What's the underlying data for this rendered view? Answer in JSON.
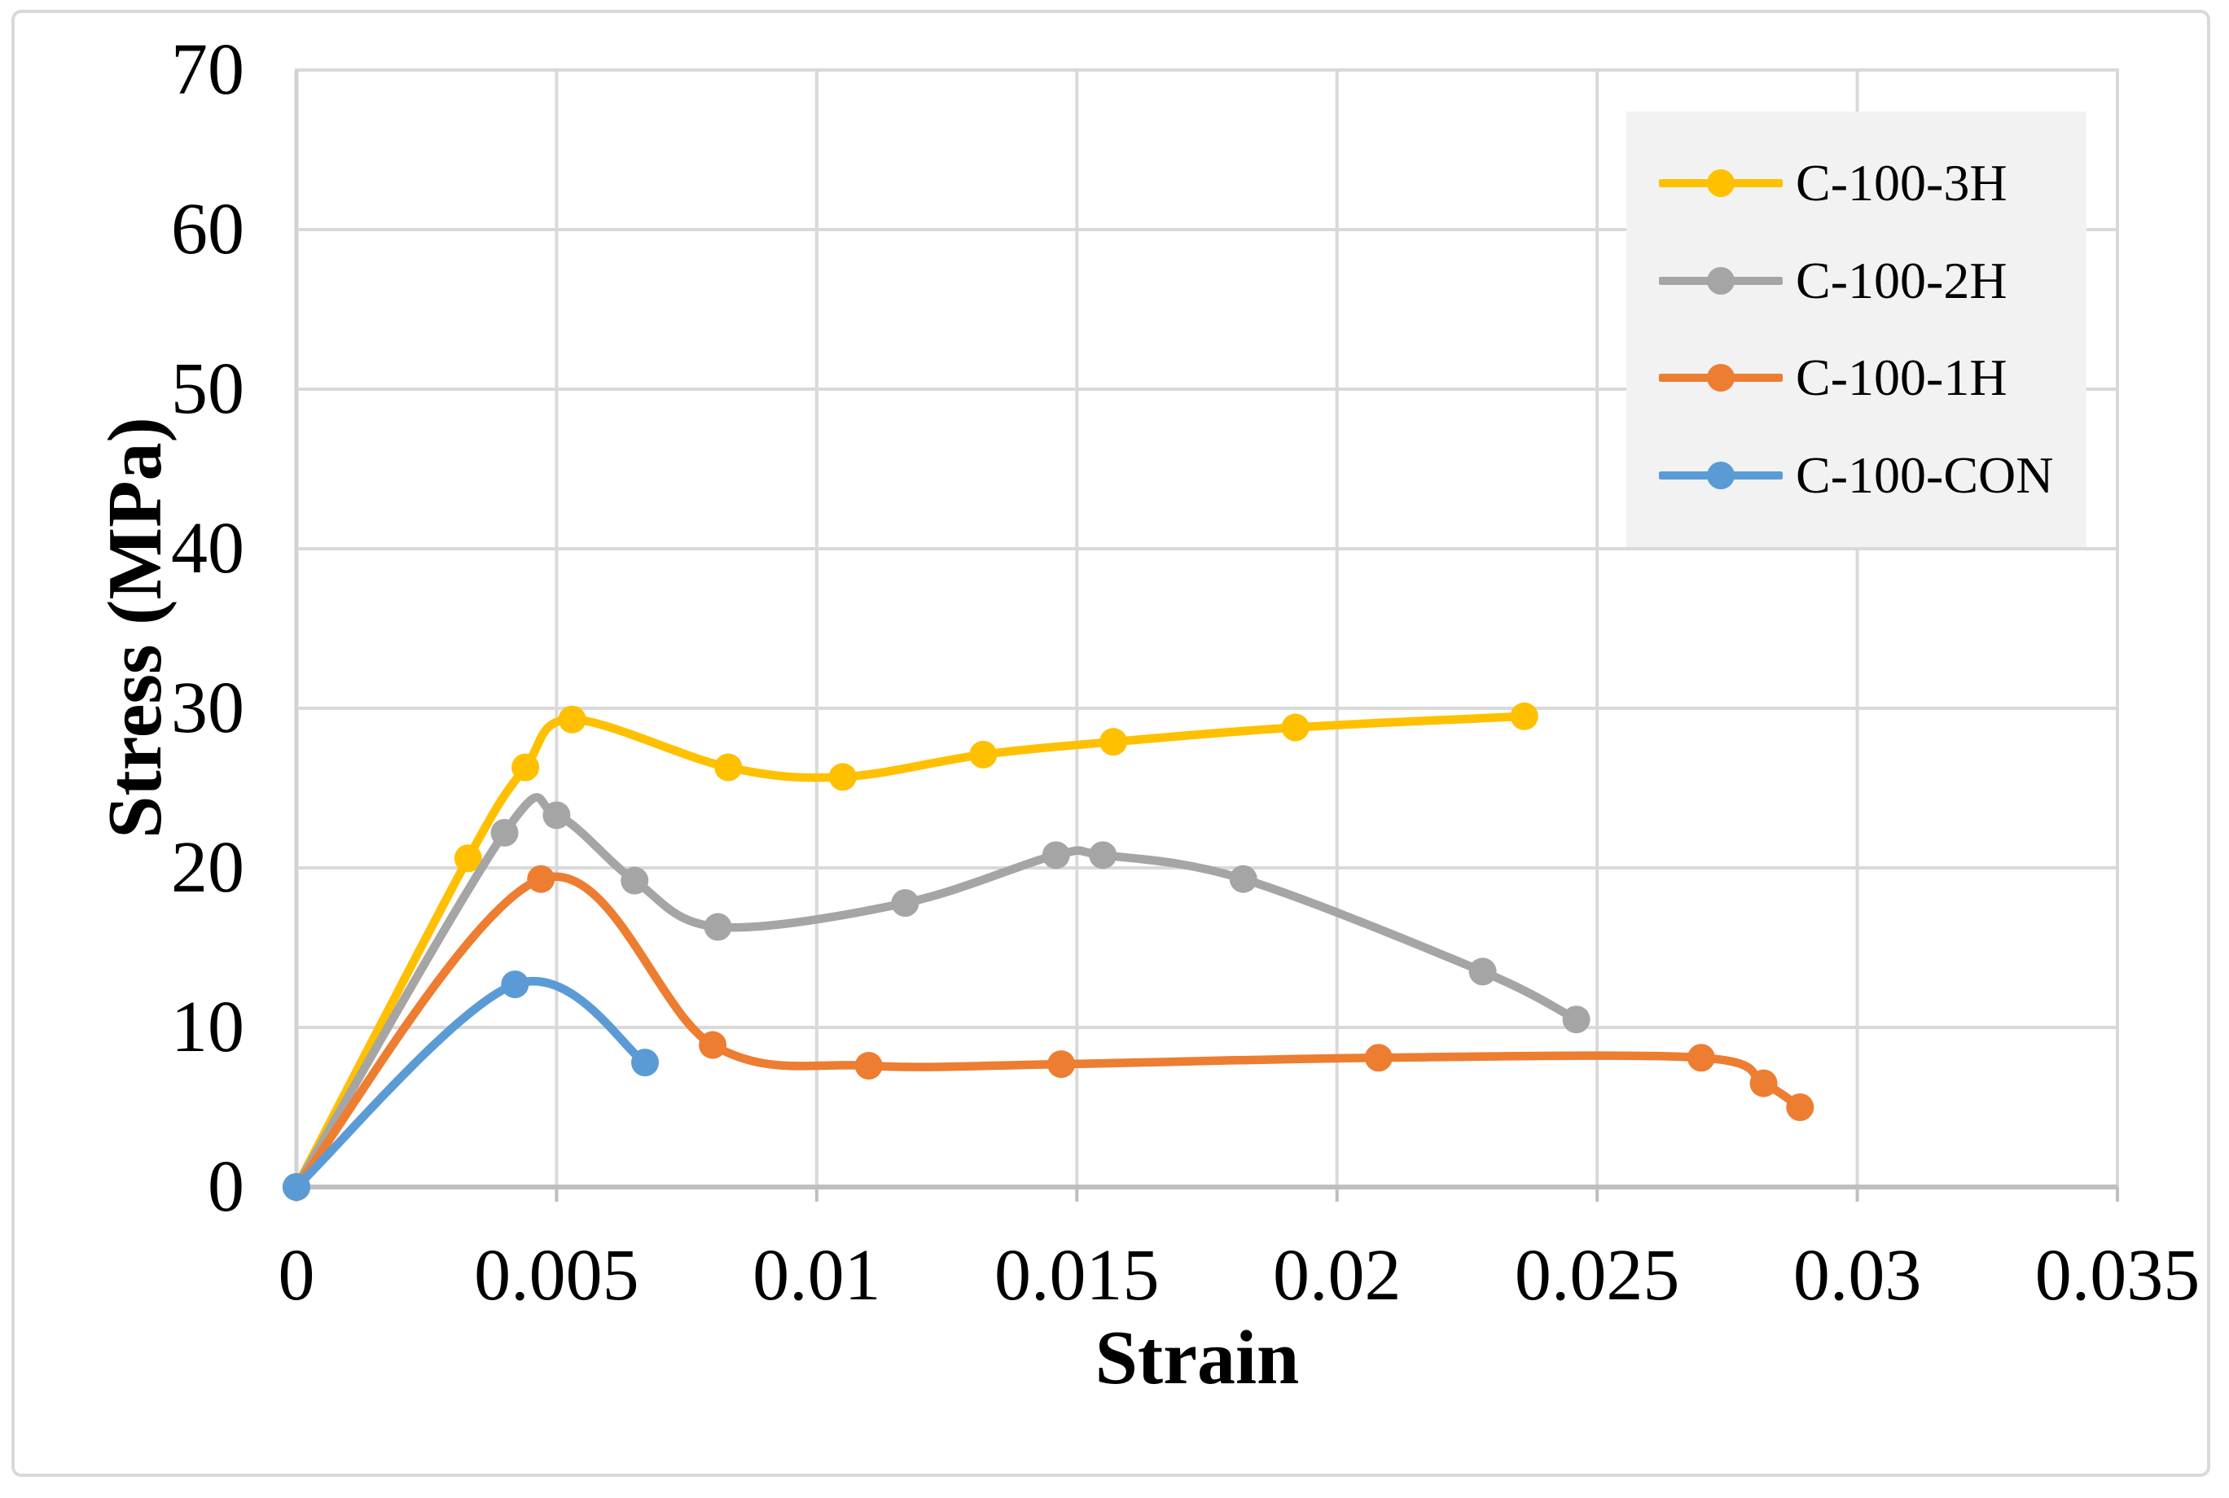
{
  "chart_data": {
    "type": "line",
    "title": "",
    "xlabel": "Strain",
    "ylabel": "Stress (MPa)",
    "xlim": [
      0,
      0.035
    ],
    "ylim": [
      0,
      70
    ],
    "xticks": [
      0,
      0.005,
      0.01,
      0.015,
      0.02,
      0.025,
      0.03,
      0.035
    ],
    "xtick_labels": [
      "0",
      "0.005",
      "0.01",
      "0.015",
      "0.02",
      "0.025",
      "0.03",
      "0.035"
    ],
    "yticks": [
      0,
      10,
      20,
      30,
      40,
      50,
      60,
      70
    ],
    "ytick_labels": [
      "0",
      "10",
      "20",
      "30",
      "40",
      "50",
      "60",
      "70"
    ],
    "grid": true,
    "line_style": "smooth",
    "marker": "circle",
    "legend_position": "top-right",
    "series": [
      {
        "name": "C-100-3H",
        "color": "#FFC000",
        "points": [
          [
            0,
            0
          ],
          [
            0.0033,
            20.6
          ],
          [
            0.0044,
            26.3
          ],
          [
            0.0053,
            29.3
          ],
          [
            0.0083,
            26.3
          ],
          [
            0.0105,
            25.7
          ],
          [
            0.0132,
            27.1
          ],
          [
            0.0157,
            27.9
          ],
          [
            0.0192,
            28.8
          ],
          [
            0.0236,
            29.5
          ]
        ]
      },
      {
        "name": "C-100-2H",
        "color": "#A5A5A5",
        "points": [
          [
            0,
            0
          ],
          [
            0.004,
            22.2
          ],
          [
            0.005,
            23.3
          ],
          [
            0.0065,
            19.2
          ],
          [
            0.0081,
            16.3
          ],
          [
            0.0117,
            17.8
          ],
          [
            0.0146,
            20.8
          ],
          [
            0.0155,
            20.8
          ],
          [
            0.0182,
            19.3
          ],
          [
            0.0228,
            13.5
          ],
          [
            0.0246,
            10.5
          ]
        ]
      },
      {
        "name": "C-100-1H",
        "color": "#ED7D31",
        "points": [
          [
            0,
            0
          ],
          [
            0.0047,
            19.3
          ],
          [
            0.008,
            8.9
          ],
          [
            0.011,
            7.6
          ],
          [
            0.0147,
            7.7
          ],
          [
            0.0208,
            8.1
          ],
          [
            0.027,
            8.1
          ],
          [
            0.0282,
            6.5
          ],
          [
            0.0289,
            5.0
          ]
        ]
      },
      {
        "name": "C-100-CON",
        "color": "#5B9BD5",
        "points": [
          [
            0,
            0
          ],
          [
            0.0042,
            12.7
          ],
          [
            0.0067,
            7.8
          ]
        ]
      }
    ]
  },
  "colors": {
    "background": "#FFFFFF",
    "frame": "#D9D9D9",
    "gridline": "#D9D9D9",
    "x_axis_line": "#BFBFBF",
    "y_axis_line": "#D2D2D2",
    "legend_bg": "#F2F2F2",
    "text": "#000000"
  }
}
